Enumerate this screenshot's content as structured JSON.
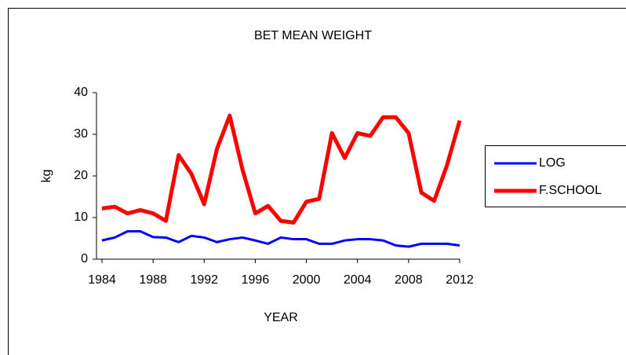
{
  "chart_data": {
    "type": "line",
    "title": "BET MEAN WEIGHT",
    "xlabel": "YEAR",
    "ylabel": "kg",
    "x": [
      1984,
      1985,
      1986,
      1987,
      1988,
      1989,
      1990,
      1991,
      1992,
      1993,
      1994,
      1995,
      1996,
      1997,
      1998,
      1999,
      2000,
      2001,
      2002,
      2003,
      2004,
      2005,
      2006,
      2007,
      2008,
      2009,
      2010,
      2011,
      2012
    ],
    "series": [
      {
        "name": "LOG",
        "color": "#0000ff",
        "values": [
          4.5,
          5.2,
          6.7,
          6.7,
          5.3,
          5.2,
          4.1,
          5.6,
          5.2,
          4.1,
          4.8,
          5.2,
          4.5,
          3.7,
          5.2,
          4.8,
          4.8,
          3.7,
          3.7,
          4.5,
          4.8,
          4.8,
          4.5,
          3.3,
          3.0,
          3.7,
          3.7,
          3.7,
          3.3
        ]
      },
      {
        "name": "F.SCHOOL",
        "color": "#ff0000",
        "values": [
          12.2,
          12.6,
          11.0,
          11.8,
          11.0,
          9.2,
          25.0,
          20.5,
          13.2,
          26.5,
          34.5,
          21.5,
          11.0,
          12.8,
          9.2,
          8.8,
          13.8,
          14.5,
          30.3,
          24.3,
          30.3,
          29.6,
          34.1,
          34.1,
          30.3,
          16.0,
          14.0,
          22.5,
          33.3
        ]
      }
    ],
    "xlim": [
      1984,
      2012
    ],
    "xticks": [
      1984,
      1988,
      1992,
      1996,
      2000,
      2004,
      2008,
      2012
    ],
    "ylim": [
      0,
      40
    ],
    "yticks": [
      0,
      10,
      20,
      30,
      40
    ],
    "grid": false,
    "legend": "right"
  }
}
